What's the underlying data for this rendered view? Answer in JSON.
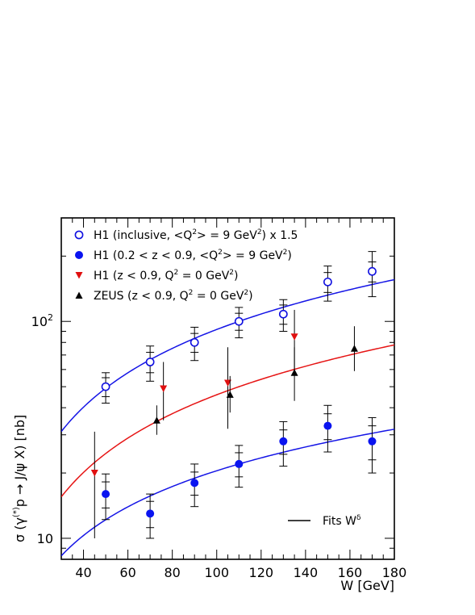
{
  "chart_data": {
    "type": "scatter",
    "xlabel": "W [GeV]",
    "ylabel": "σ (γ(*)p → J/ψ X) [nb]",
    "ylabel_parts": {
      "a": "σ (γ",
      "sup": "(*)",
      "b": "p → J/ψ X) [nb]"
    },
    "xlim": [
      30,
      180
    ],
    "ylim": [
      8,
      300
    ],
    "yscale": "log",
    "x_ticks": [
      40,
      60,
      80,
      100,
      120,
      140,
      160,
      180
    ],
    "x_tick_labels": [
      "40",
      "60",
      "80",
      "100",
      "120",
      "140",
      "160",
      "180"
    ],
    "y_ticks": [
      10,
      100
    ],
    "y_tick_labels": [
      {
        "base": "10",
        "exp": ""
      },
      {
        "base": "10",
        "exp": "2"
      }
    ],
    "legend_position": "top-left",
    "series": [
      {
        "name": "H1 (inclusive, <Q²> = 9 GeV²) x 1.5",
        "legend": {
          "a": "H1 (inclusive, <Q",
          "s1": "2",
          "b": "> = 9 GeV",
          "s2": "2",
          "c": ") x 1.5"
        },
        "marker": "open-circle",
        "color": "#1010e0",
        "x": [
          50,
          70,
          90,
          110,
          130,
          150,
          170
        ],
        "y": [
          50,
          65,
          80,
          100,
          108,
          152,
          170
        ],
        "err_inner": [
          5,
          7,
          8,
          9,
          11,
          16,
          18
        ],
        "err_outer": [
          8,
          12,
          14,
          16,
          18,
          28,
          40
        ]
      },
      {
        "name": "H1 (0.2 < z < 0.9, <Q²> = 9 GeV²)",
        "legend": {
          "a": "H1 (0.2 < z < 0.9, <Q",
          "s1": "2",
          "b": "> = 9 GeV",
          "s2": "2",
          "c": ")"
        },
        "marker": "filled-circle",
        "color": "#0a14f0",
        "x": [
          50,
          70,
          90,
          110,
          130,
          150,
          170
        ],
        "y": [
          16,
          13,
          18,
          22,
          28,
          33,
          28
        ],
        "err_inner": [
          2.2,
          1.8,
          2.2,
          2.8,
          3.6,
          4.5,
          5
        ],
        "err_outer": [
          3.8,
          3.0,
          4.0,
          4.8,
          6.5,
          8,
          8
        ]
      },
      {
        "name": "H1 (z < 0.9, Q² = 0 GeV²)",
        "legend": {
          "a": "H1 (z < 0.9, Q",
          "s1": "2",
          "b": " = 0 GeV",
          "s2": "2",
          "c": ")"
        },
        "marker": "down-triangle",
        "color": "#e01010",
        "x": [
          45,
          76,
          105,
          135
        ],
        "y": [
          20,
          49,
          52,
          85
        ],
        "err_low": [
          10,
          14,
          20,
          28
        ],
        "err_high": [
          11,
          16,
          24,
          28
        ]
      },
      {
        "name": "ZEUS (z < 0.9, Q² = 0 GeV²)",
        "legend": {
          "a": "ZEUS (z < 0.9, Q",
          "s1": "2",
          "b": " = 0 GeV",
          "s2": "2",
          "c": ")"
        },
        "marker": "up-triangle",
        "color": "#000000",
        "x": [
          73,
          106,
          135,
          162
        ],
        "y": [
          35,
          46,
          58,
          75
        ],
        "err_low": [
          5,
          8,
          15,
          16
        ],
        "err_high": [
          6,
          10,
          18,
          20
        ]
      }
    ],
    "fits": [
      {
        "color": "#1414e6",
        "norm": 100,
        "ref": 110,
        "delta": 0.9
      },
      {
        "color": "#1414e6",
        "norm": 22,
        "ref": 110,
        "delta": 0.75
      },
      {
        "color": "#e61414",
        "norm": 50,
        "ref": 110,
        "delta": 0.9
      }
    ],
    "fit_legend": {
      "text": "Fits W",
      "sup": "δ"
    }
  }
}
